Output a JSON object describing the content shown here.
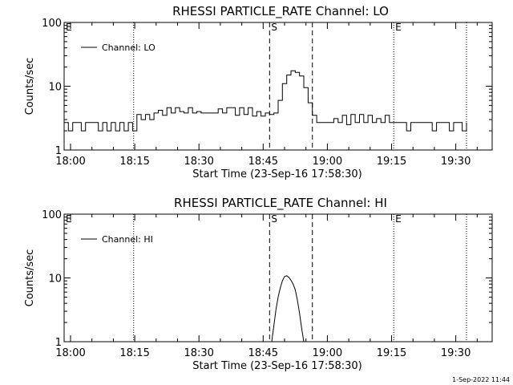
{
  "footer": {
    "timestamp": "1-Sep-2022 11:44"
  },
  "chart_data": [
    {
      "type": "line",
      "title": "RHESSI PARTICLE_RATE Channel: LO",
      "xlabel": "Start Time (23-Sep-16 17:58:30)",
      "ylabel": "Counts/sec",
      "y_scale": "log",
      "ylim": [
        1,
        100
      ],
      "xlim": [
        "17:58:30",
        "19:38:30"
      ],
      "x_ticks": [
        "18:00",
        "18:15",
        "18:30",
        "18:45",
        "19:00",
        "19:15",
        "19:30"
      ],
      "y_ticks": [
        "1",
        "10",
        "100"
      ],
      "legend": "top-left",
      "markers": [
        {
          "label": "E",
          "time": "17:58:30",
          "style": "dotted"
        },
        {
          "label": "",
          "time": "18:14:45",
          "style": "dotted"
        },
        {
          "label": "S",
          "time": "18:46:30",
          "style": "dashed"
        },
        {
          "label": "",
          "time": "18:56:30",
          "style": "dashed"
        },
        {
          "label": "E",
          "time": "19:15:30",
          "style": "dotted"
        },
        {
          "label": "",
          "time": "19:32:30",
          "style": "dotted"
        }
      ],
      "series": [
        {
          "name": "Channel: LO",
          "x": [
            "17:58:30",
            "17:59:30",
            "18:00:30",
            "18:01:30",
            "18:02:30",
            "18:03:30",
            "18:04:30",
            "18:05:30",
            "18:06:30",
            "18:07:30",
            "18:08:30",
            "18:09:30",
            "18:10:30",
            "18:11:30",
            "18:12:30",
            "18:13:30",
            "18:14:30",
            "18:15:30",
            "18:16:30",
            "18:17:30",
            "18:18:30",
            "18:19:30",
            "18:20:30",
            "18:21:30",
            "18:22:30",
            "18:23:30",
            "18:24:30",
            "18:25:30",
            "18:26:30",
            "18:27:30",
            "18:28:30",
            "18:29:30",
            "18:30:30",
            "18:31:30",
            "18:32:30",
            "18:33:30",
            "18:34:30",
            "18:35:30",
            "18:36:30",
            "18:37:30",
            "18:38:30",
            "18:39:30",
            "18:40:30",
            "18:41:30",
            "18:42:30",
            "18:43:30",
            "18:44:30",
            "18:45:30",
            "18:46:30",
            "18:47:30",
            "18:48:30",
            "18:49:30",
            "18:50:30",
            "18:51:30",
            "18:52:30",
            "18:53:30",
            "18:54:30",
            "18:55:30",
            "18:56:30",
            "18:57:30",
            "18:58:30",
            "18:59:30",
            "19:00:30",
            "19:01:30",
            "19:02:30",
            "19:03:30",
            "19:04:30",
            "19:05:30",
            "19:06:30",
            "19:07:30",
            "19:08:30",
            "19:09:30",
            "19:10:30",
            "19:11:30",
            "19:12:30",
            "19:13:30",
            "19:14:30",
            "19:15:30",
            "19:16:30",
            "19:17:30",
            "19:18:30",
            "19:19:30",
            "19:20:30",
            "19:21:30",
            "19:22:30",
            "19:23:30",
            "19:24:30",
            "19:25:30",
            "19:26:30",
            "19:27:30",
            "19:28:30",
            "19:29:30",
            "19:30:30",
            "19:31:30",
            "19:32:30"
          ],
          "values": [
            2.7,
            2.0,
            2.7,
            2.7,
            2.0,
            2.7,
            2.7,
            2.7,
            2.0,
            2.7,
            2.0,
            2.7,
            2.0,
            2.7,
            2.0,
            2.7,
            2.0,
            3.6,
            3.0,
            3.6,
            3.0,
            3.8,
            4.2,
            3.5,
            4.6,
            3.8,
            4.6,
            4.0,
            3.8,
            4.6,
            3.8,
            4.0,
            3.8,
            3.8,
            3.8,
            3.8,
            4.4,
            3.8,
            4.6,
            4.6,
            3.5,
            4.6,
            3.6,
            4.6,
            3.4,
            4.0,
            3.4,
            3.8,
            3.6,
            3.8,
            6.0,
            11.0,
            15.0,
            17.5,
            16.5,
            14.5,
            9.5,
            5.5,
            3.5,
            2.7,
            2.7,
            2.7,
            2.7,
            3.1,
            2.7,
            3.5,
            2.5,
            3.6,
            2.7,
            3.6,
            2.7,
            3.5,
            2.7,
            3.1,
            2.7,
            3.5,
            2.7,
            2.7,
            2.7,
            2.7,
            2.0,
            2.7,
            2.7,
            2.7,
            2.7,
            2.7,
            2.0,
            2.7,
            2.7,
            2.7,
            2.0,
            2.7,
            2.7,
            2.0,
            2.7
          ]
        }
      ]
    },
    {
      "type": "line",
      "title": "RHESSI PARTICLE_RATE Channel: HI",
      "xlabel": "Start Time (23-Sep-16 17:58:30)",
      "ylabel": "Counts/sec",
      "y_scale": "log",
      "ylim": [
        1,
        100
      ],
      "xlim": [
        "17:58:30",
        "19:38:30"
      ],
      "x_ticks": [
        "18:00",
        "18:15",
        "18:30",
        "18:45",
        "19:00",
        "19:15",
        "19:30"
      ],
      "y_ticks": [
        "1",
        "10",
        "100"
      ],
      "legend": "top-left",
      "markers": [
        {
          "label": "E",
          "time": "17:58:30",
          "style": "dotted"
        },
        {
          "label": "",
          "time": "18:14:45",
          "style": "dotted"
        },
        {
          "label": "S",
          "time": "18:46:30",
          "style": "dashed"
        },
        {
          "label": "",
          "time": "18:56:30",
          "style": "dashed"
        },
        {
          "label": "E",
          "time": "19:15:30",
          "style": "dotted"
        },
        {
          "label": "",
          "time": "19:32:30",
          "style": "dotted"
        }
      ],
      "series": [
        {
          "name": "Channel: HI",
          "x": [
            "18:47:00",
            "18:47:30",
            "18:48:00",
            "18:48:30",
            "18:49:00",
            "18:49:30",
            "18:50:00",
            "18:50:30",
            "18:51:00",
            "18:51:30",
            "18:52:00",
            "18:52:30",
            "18:53:00",
            "18:53:30",
            "18:54:00",
            "18:54:30"
          ],
          "values": [
            1.0,
            1.8,
            3.2,
            5.0,
            7.0,
            9.0,
            10.5,
            10.8,
            10.2,
            9.2,
            8.0,
            6.5,
            4.5,
            2.8,
            1.6,
            1.0
          ]
        }
      ]
    }
  ]
}
